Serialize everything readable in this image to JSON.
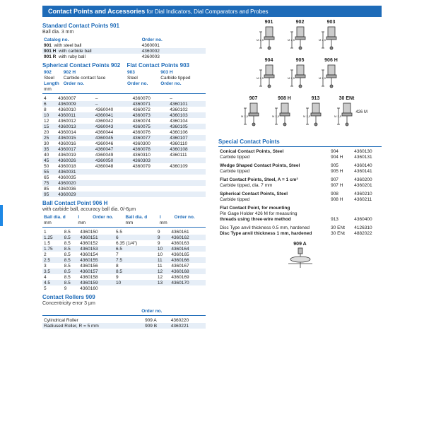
{
  "banner": {
    "title": "Contact Points and Accessories",
    "subtitle": " for Dial Indicators, Dial Comparators and Probes"
  },
  "s901": {
    "title": "Standard Contact Points 901",
    "sub": "Ball dia. 3 mm",
    "col1": "Catalog no.",
    "col2": "Order no.",
    "rows": [
      [
        "901",
        "with steel ball",
        "4360001"
      ],
      [
        "901 H",
        "with carbide ball",
        "4360002"
      ],
      [
        "901 R",
        "with ruby ball",
        "4360003"
      ]
    ]
  },
  "s902": {
    "t1": "Spherical Contact Points 902",
    "t2": "Flat Contact Points 903",
    "c": [
      "902",
      "902 H",
      "903",
      "903 H"
    ],
    "c2": [
      "Steel",
      "Carbide contact face",
      "Steel",
      "Carbide tipped"
    ],
    "len": "Length",
    "mm": "mm",
    "on": "Order no.",
    "rows": [
      [
        "4",
        "4360007",
        "–",
        "4360070",
        "–"
      ],
      [
        "6",
        "4360009",
        "–",
        "4360071",
        "4360101"
      ],
      [
        "8",
        "4360010",
        "4360040",
        "4360072",
        "4360102"
      ],
      [
        "10",
        "4360011",
        "4360041",
        "4360073",
        "4360103"
      ],
      [
        "12",
        "4360012",
        "4360042",
        "4360074",
        "4360104"
      ],
      [
        "15",
        "4360013",
        "4360043",
        "4360075",
        "4360105"
      ],
      [
        "20",
        "4360014",
        "4360044",
        "4360076",
        "4360106"
      ],
      [
        "25",
        "4360015",
        "4360045",
        "4360077",
        "4360107"
      ],
      [
        "30",
        "4360016",
        "4360046",
        "4360300",
        "4360110"
      ],
      [
        "35",
        "4360017",
        "4360047",
        "4360078",
        "4360108"
      ],
      [
        "40",
        "4360019",
        "4360049",
        "4360310",
        "4360111"
      ],
      [
        "45",
        "4360026",
        "4360050",
        "4360303",
        ""
      ],
      [
        "50",
        "4360018",
        "4360048",
        "4360079",
        "4360109"
      ],
      [
        "55",
        "4360031",
        "",
        "",
        ""
      ],
      [
        "65",
        "4360035",
        "",
        "",
        ""
      ],
      [
        "75",
        "4360020",
        "",
        "",
        ""
      ],
      [
        "85",
        "4360036",
        "",
        "",
        ""
      ],
      [
        "95",
        "4360029",
        "",
        "",
        ""
      ]
    ]
  },
  "s906": {
    "title": "Ball Contact Point 906 H",
    "sub": "with carbide ball, accuracy ball dia. 0/-6µm",
    "h": [
      "Ball dia. d",
      "l",
      "Order no.",
      "Ball dia. d",
      "l",
      "Order no."
    ],
    "u": [
      "mm",
      "mm",
      "",
      "mm",
      "mm",
      ""
    ],
    "rows": [
      [
        "1",
        "8.5",
        "4360150",
        "5.5",
        "9",
        "4360161"
      ],
      [
        "1.25",
        "8.5",
        "4360151",
        "6",
        "9",
        "4360162"
      ],
      [
        "1.5",
        "8.5",
        "4360152",
        "6.35 (1/4\")",
        "9",
        "4360163"
      ],
      [
        "1.75",
        "8.5",
        "4360153",
        "6.5",
        "10",
        "4360164"
      ],
      [
        "2",
        "8.5",
        "4360154",
        "7",
        "10",
        "4360165"
      ],
      [
        "2.5",
        "8.5",
        "4360155",
        "7.5",
        "11",
        "4360166"
      ],
      [
        "3",
        "8.5",
        "4360156",
        "8",
        "11",
        "4360167"
      ],
      [
        "3.5",
        "8.5",
        "4360157",
        "8.5",
        "12",
        "4360168"
      ],
      [
        "4",
        "8.5",
        "4360158",
        "9",
        "12",
        "4360169"
      ],
      [
        "4.5",
        "8.5",
        "4360159",
        "10",
        "13",
        "4360170"
      ],
      [
        "5",
        "9",
        "4360160",
        "",
        "",
        ""
      ]
    ]
  },
  "s909": {
    "title": "Contact Rollers 909",
    "sub": "Concentricity error 3 µm",
    "on": "Order no.",
    "rows": [
      [
        "Cylindrical Roller",
        "909 A",
        "4360220"
      ],
      [
        "Radiused Roller, R = 5 mm",
        "909 B",
        "4360221"
      ]
    ]
  },
  "special": {
    "title": "Special Contact Points",
    "rows": [
      [
        "Conical Contact Points, Steel",
        "904",
        "4360130"
      ],
      [
        "Carbide tipped",
        "904 H",
        "4360131"
      ],
      [
        "Wedge Shaped Contact Points, Steel",
        "905",
        "4360140"
      ],
      [
        "Carbide tipped",
        "905 H",
        "4360141"
      ],
      [
        "Flat Contact Points, Steel, A = 1 cm²",
        "907",
        "4360200"
      ],
      [
        "Carbide tipped, dia. 7 mm",
        "907 H",
        "4360201"
      ],
      [
        "Spherical Contact Points, Steel",
        "908",
        "4360210"
      ],
      [
        "Carbide tipped",
        "908 H",
        "4360211"
      ],
      [
        "Flat Contact Point, for mounting",
        "",
        ""
      ],
      [
        "Pin Gage Holder 426 M for measuring",
        "",
        ""
      ],
      [
        "threads using three-wire method",
        "913",
        "4360400"
      ],
      [
        "Disc Type anvil thickness 0.5 mm, hardened",
        "30 ENt",
        "4126310"
      ],
      [
        "Disc Type anvil thickness 1 mm, hardened",
        "30 ENt",
        "4882022"
      ]
    ]
  },
  "diags": [
    "901",
    "902",
    "903",
    "904",
    "905",
    "906 H",
    "907",
    "908 H",
    "913",
    "30 ENt"
  ],
  "extra": "426 M",
  "bottom": "909 A"
}
